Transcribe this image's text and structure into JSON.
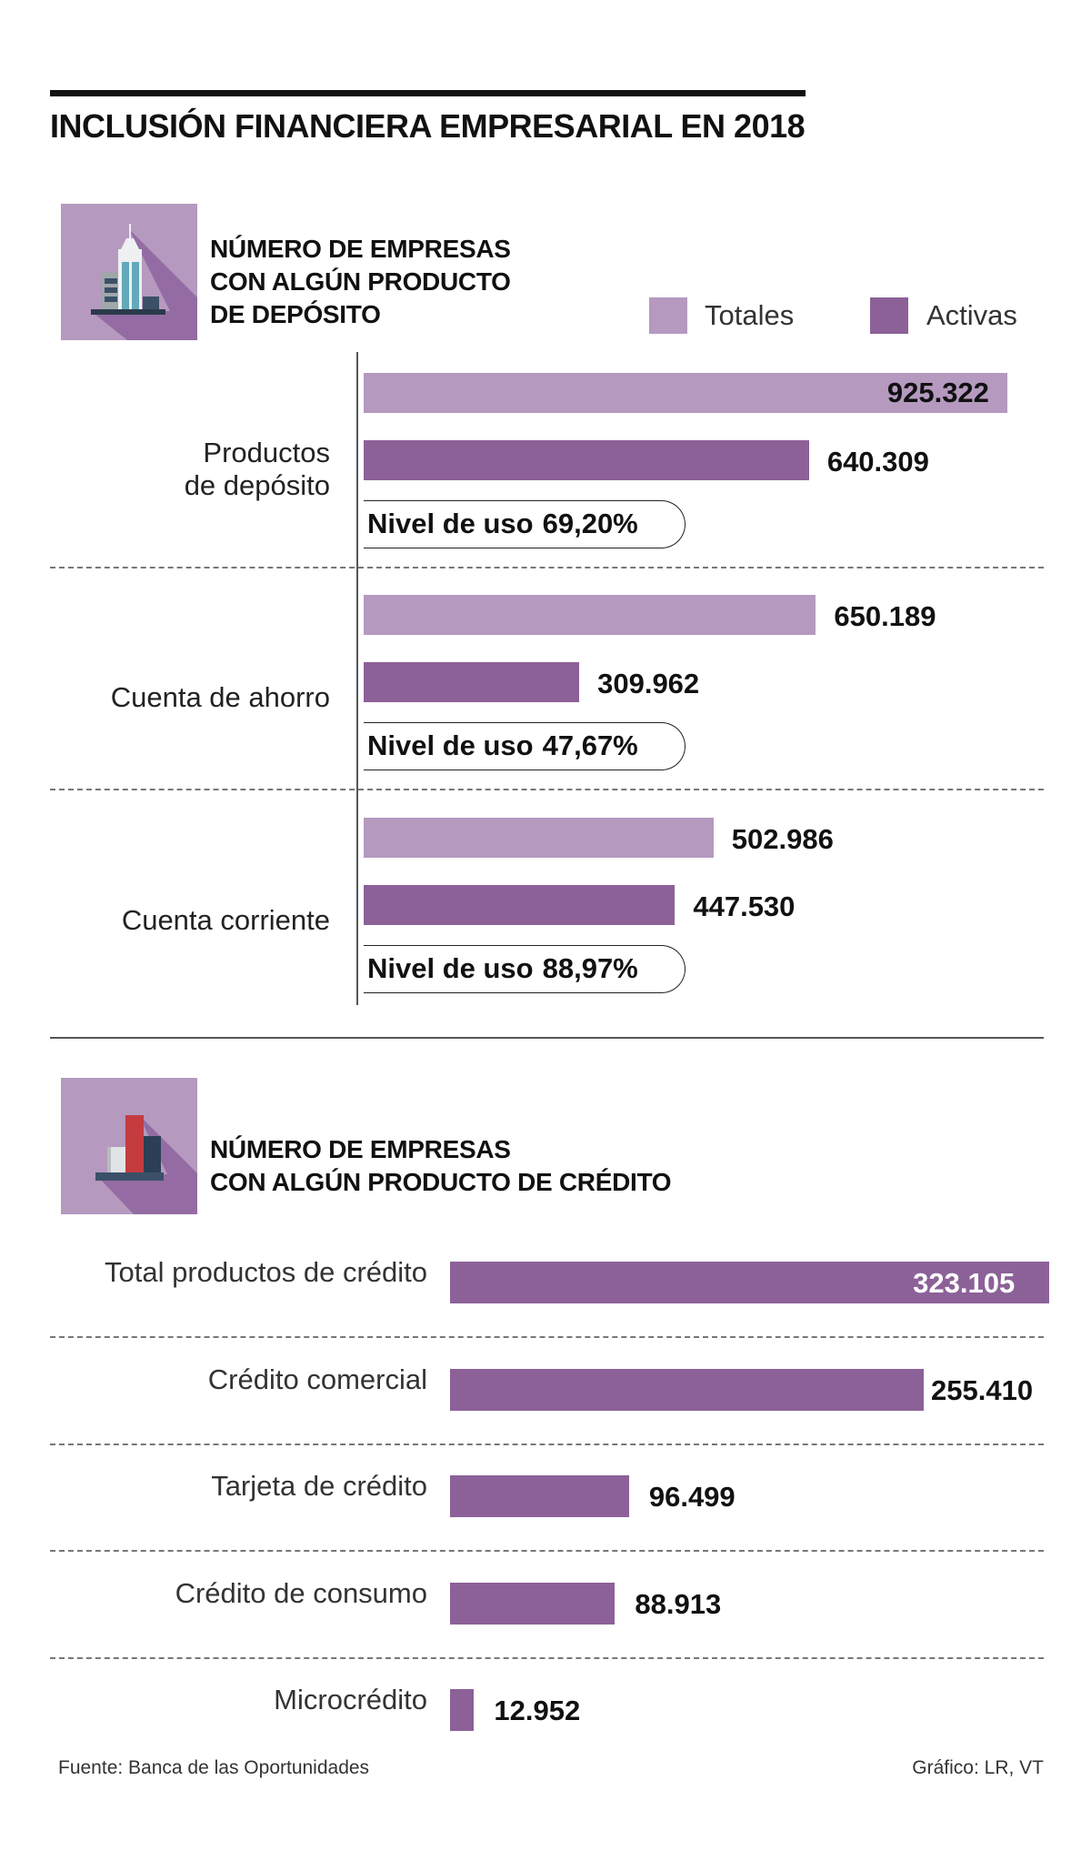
{
  "title": "INCLUSIÓN FINANCIERA EMPRESARIAL EN 2018",
  "colors": {
    "totales": "#b599bf",
    "activas": "#8c6198"
  },
  "chart_data": [
    {
      "type": "bar",
      "orientation": "horizontal",
      "title": [
        "NÚMERO DE EMPRESAS",
        "CON ALGÚN PRODUCTO",
        "DE DEPÓSITO"
      ],
      "icon": "building-icon",
      "legend": {
        "placement": "top-right",
        "entries": [
          "Totales",
          "Activas"
        ]
      },
      "categories": [
        "Productos de depósito",
        "Cuenta de ahorro",
        "Cuenta corriente"
      ],
      "category_lines": [
        [
          "Productos",
          "de depósito"
        ],
        [
          "Cuenta de ahorro"
        ],
        [
          "Cuenta corriente"
        ]
      ],
      "series": [
        {
          "name": "Totales",
          "values": [
            925.322,
            650.189,
            502.986
          ],
          "labels": [
            "925.322",
            "650.189",
            "502.986"
          ]
        },
        {
          "name": "Activas",
          "values": [
            640.309,
            309.962,
            447.53
          ],
          "labels": [
            "640.309",
            "309.962",
            "447.530"
          ]
        }
      ],
      "usage": {
        "label": "Nivel de uso",
        "values": [
          "69,20%",
          "47,67%",
          "88,97%"
        ]
      }
    },
    {
      "type": "bar",
      "orientation": "horizontal",
      "title": [
        "NÚMERO DE EMPRESAS",
        "CON ALGÚN PRODUCTO DE CRÉDITO"
      ],
      "icon": "bar-chart-icon",
      "categories": [
        "Total productos de crédito",
        "Crédito comercial",
        "Tarjeta de crédito",
        "Crédito de consumo",
        "Microcrédito"
      ],
      "values": [
        323.105,
        255.41,
        96.499,
        88.913,
        12.952
      ],
      "labels": [
        "323.105",
        "255.410",
        "96.499",
        "88.913",
        "12.952"
      ]
    }
  ],
  "footer": {
    "source": "Fuente: Banca de las Oportunidades",
    "credit": "Gráfico: LR, VT"
  }
}
